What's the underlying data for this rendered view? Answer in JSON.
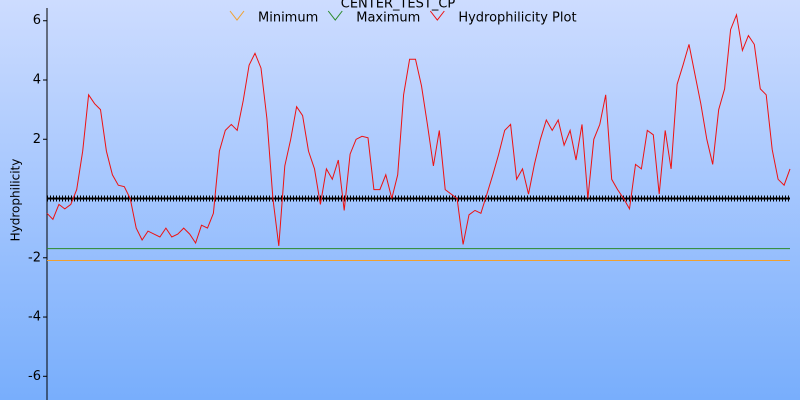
{
  "chart_data": {
    "type": "line",
    "title": "CENTER_TEST_CP",
    "ylabel": "Hydrophilicity",
    "ylim": [
      -6.8,
      6.7
    ],
    "yticks": [
      -6,
      -4,
      -2,
      2,
      4,
      6
    ],
    "series": [
      {
        "name": "Minimum",
        "color": "#f0a030",
        "value": -2.09
      },
      {
        "name": "Maximum",
        "color": "#2a8a2a",
        "value": -1.69
      },
      {
        "name": "Hydrophilicity Plot",
        "color": "#ee1111",
        "values": [
          -0.5,
          -0.7,
          -0.2,
          -0.35,
          -0.2,
          0.3,
          1.6,
          3.5,
          3.2,
          3.0,
          1.6,
          0.8,
          0.45,
          0.4,
          0,
          -1.0,
          -1.4,
          -1.1,
          -1.2,
          -1.3,
          -1.0,
          -1.3,
          -1.2,
          -1.0,
          -1.2,
          -1.5,
          -0.9,
          -1.0,
          -0.5,
          1.6,
          2.3,
          2.5,
          2.3,
          3.3,
          4.5,
          4.9,
          4.4,
          2.7,
          0,
          -1.6,
          1.1,
          2.0,
          3.1,
          2.8,
          1.6,
          1.0,
          -0.2,
          1.0,
          0.65,
          1.3,
          -0.4,
          1.5,
          2.0,
          2.1,
          2.05,
          0.3,
          0.3,
          0.8,
          0,
          0.8,
          3.5,
          4.7,
          4.7,
          3.8,
          2.5,
          1.1,
          2.3,
          0.3,
          0.15,
          0,
          -1.55,
          -0.55,
          -0.4,
          -0.5,
          0.15,
          0.8,
          1.5,
          2.3,
          2.5,
          0.65,
          1.0,
          0.15,
          1.15,
          2.0,
          2.65,
          2.3,
          2.65,
          1.8,
          2.3,
          1.3,
          2.5,
          0,
          2.0,
          2.5,
          3.5,
          0.65,
          0.3,
          0,
          -0.35,
          1.15,
          1.0,
          2.3,
          2.15,
          0.15,
          2.3,
          1.0,
          3.85,
          4.5,
          5.2,
          4.2,
          3.2,
          2.0,
          1.15,
          3.0,
          3.7,
          5.7,
          6.2,
          5.0,
          5.5,
          5.2,
          3.7,
          3.5,
          1.65,
          0.65,
          0.45,
          1.0
        ]
      }
    ]
  }
}
